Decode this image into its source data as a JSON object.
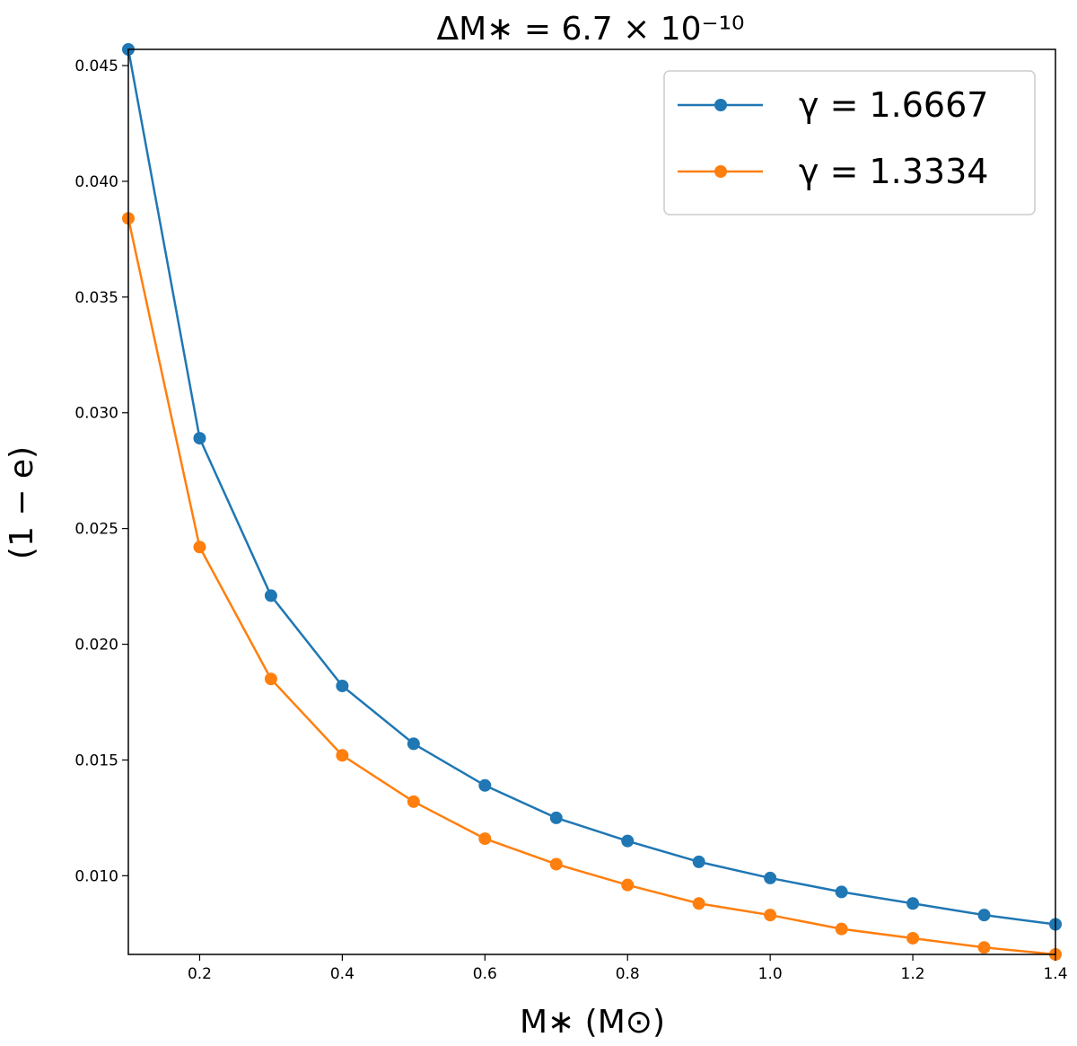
{
  "chart_data": {
    "type": "line",
    "title": "ΔM∗ = 6.7 × 10⁻¹⁰",
    "xlabel": "M∗ (M⊙)",
    "ylabel": "(1 − e)",
    "xlim": [
      0.1,
      1.4
    ],
    "ylim": [
      0.0066,
      0.0457
    ],
    "x_ticks": [
      "0.2",
      "0.4",
      "0.6",
      "0.8",
      "1.0",
      "1.2",
      "1.4"
    ],
    "y_ticks": [
      "0.010",
      "0.015",
      "0.020",
      "0.025",
      "0.030",
      "0.035",
      "0.040",
      "0.045"
    ],
    "grid": false,
    "legend_position": "top-right",
    "x": [
      0.1,
      0.2,
      0.3,
      0.4,
      0.5,
      0.6,
      0.7,
      0.8,
      0.9,
      1.0,
      1.1,
      1.2,
      1.3,
      1.4
    ],
    "series": [
      {
        "name": "γ = 1.6667",
        "color": "#1f77b4",
        "values": [
          0.0457,
          0.0289,
          0.0221,
          0.0182,
          0.0157,
          0.0139,
          0.0125,
          0.0115,
          0.0106,
          0.0099,
          0.0093,
          0.0088,
          0.0083,
          0.0079
        ]
      },
      {
        "name": "γ = 1.3334",
        "color": "#ff7f0e",
        "values": [
          0.0384,
          0.0242,
          0.0185,
          0.0152,
          0.0132,
          0.0116,
          0.0105,
          0.0096,
          0.0088,
          0.0083,
          0.0077,
          0.0073,
          0.0069,
          0.0066
        ]
      }
    ]
  }
}
